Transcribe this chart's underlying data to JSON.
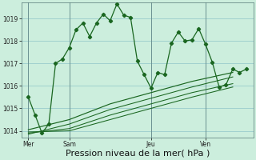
{
  "background_color": "#cceedd",
  "grid_color": "#99cccc",
  "line_color": "#1a6620",
  "xlabel": "Pression niveau de la mer( hPa )",
  "xlabel_fontsize": 8,
  "yticks": [
    1014,
    1015,
    1016,
    1017,
    1018,
    1019
  ],
  "xtick_labels": [
    "Mer",
    "Sam",
    "Jeu",
    "Ven"
  ],
  "xtick_positions": [
    0,
    3,
    9,
    13
  ],
  "ylim": [
    1013.7,
    1019.7
  ],
  "xlim": [
    -0.5,
    16.5
  ],
  "series1_x": [
    0,
    0.5,
    1,
    1.5,
    2,
    2.5,
    3,
    3.5,
    4,
    4.5,
    5,
    5.5,
    6,
    6.5,
    7,
    7.5,
    8,
    8.5,
    9,
    9.5,
    10,
    10.5,
    11,
    11.5,
    12,
    12.5,
    13,
    13.5,
    14,
    14.5,
    15,
    15.5,
    16
  ],
  "series1_y": [
    1015.5,
    1014.7,
    1013.9,
    1014.3,
    1017.0,
    1017.2,
    1017.7,
    1018.5,
    1018.8,
    1018.2,
    1018.8,
    1019.2,
    1018.9,
    1019.65,
    1019.15,
    1019.05,
    1017.1,
    1016.5,
    1015.9,
    1016.6,
    1016.5,
    1017.9,
    1018.4,
    1018.0,
    1018.05,
    1018.55,
    1017.85,
    1017.05,
    1015.95,
    1016.05,
    1016.75,
    1016.6,
    1016.75
  ],
  "series2_x": [
    0,
    3,
    6,
    9,
    12,
    15
  ],
  "series2_y": [
    1014.05,
    1014.5,
    1015.2,
    1015.7,
    1016.2,
    1016.6
  ],
  "series3_x": [
    0,
    3,
    6,
    9,
    12,
    15
  ],
  "series3_y": [
    1013.85,
    1014.3,
    1014.95,
    1015.45,
    1015.95,
    1016.4
  ],
  "series4_x": [
    0,
    3,
    6,
    9,
    12,
    15
  ],
  "series4_y": [
    1013.9,
    1014.1,
    1014.7,
    1015.2,
    1015.7,
    1016.1
  ],
  "series5_x": [
    0,
    3,
    6,
    9,
    12,
    15
  ],
  "series5_y": [
    1013.95,
    1014.0,
    1014.5,
    1015.0,
    1015.5,
    1015.95
  ]
}
